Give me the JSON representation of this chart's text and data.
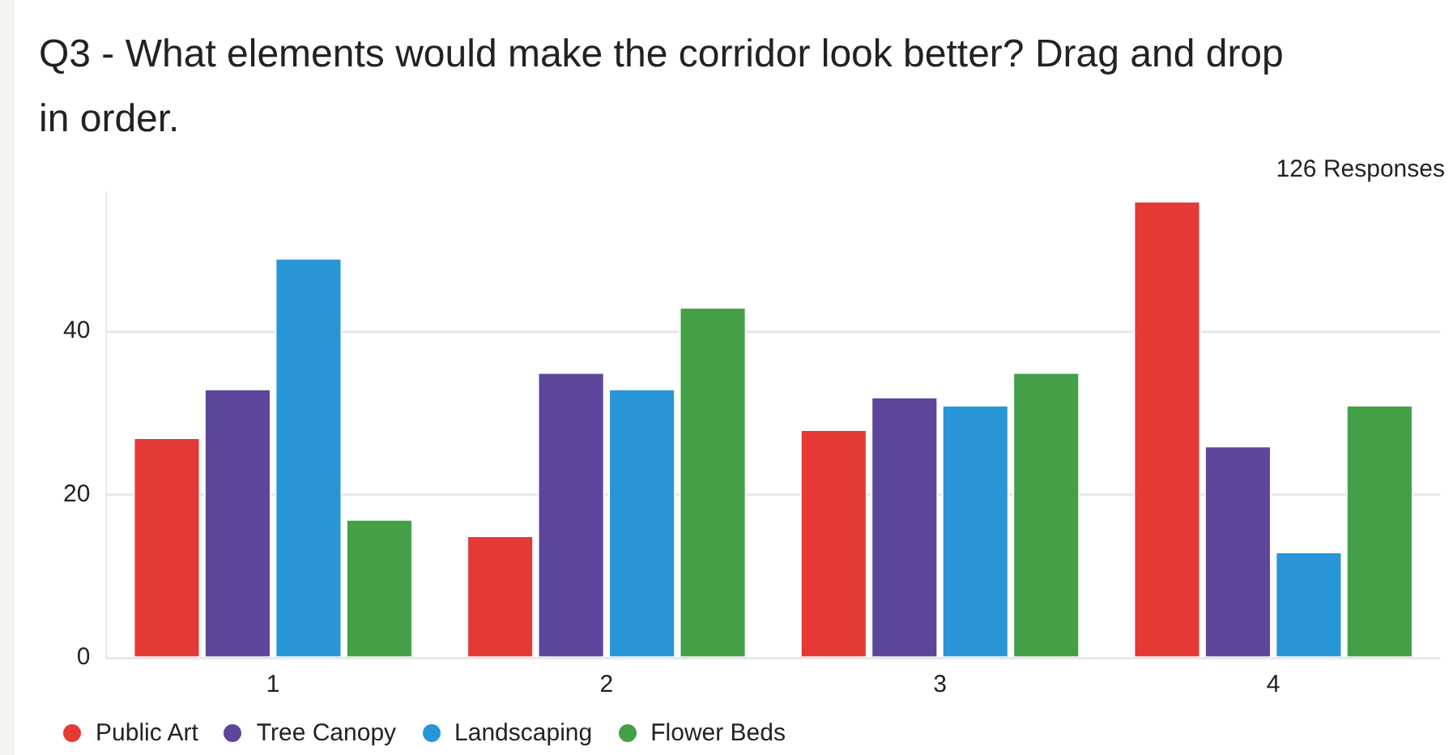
{
  "chart_data": {
    "type": "bar",
    "title": "Q3 - What elements would make the corridor look better? Drag and drop in order.",
    "annotations": [
      "126 Responses"
    ],
    "categories": [
      "1",
      "2",
      "3",
      "4"
    ],
    "series": [
      {
        "name": "Public Art",
        "color": "#e53935",
        "values": [
          27,
          15,
          28,
          56
        ]
      },
      {
        "name": "Tree Canopy",
        "color": "#5e459c",
        "values": [
          33,
          35,
          32,
          26
        ]
      },
      {
        "name": "Landscaping",
        "color": "#2896d6",
        "values": [
          49,
          33,
          31,
          13
        ]
      },
      {
        "name": "Flower Beds",
        "color": "#43a047",
        "values": [
          17,
          43,
          35,
          31
        ]
      }
    ],
    "ylim": [
      0,
      57
    ],
    "yticks": [
      0,
      20,
      40
    ],
    "grid": "y",
    "legend": "bottom left"
  }
}
